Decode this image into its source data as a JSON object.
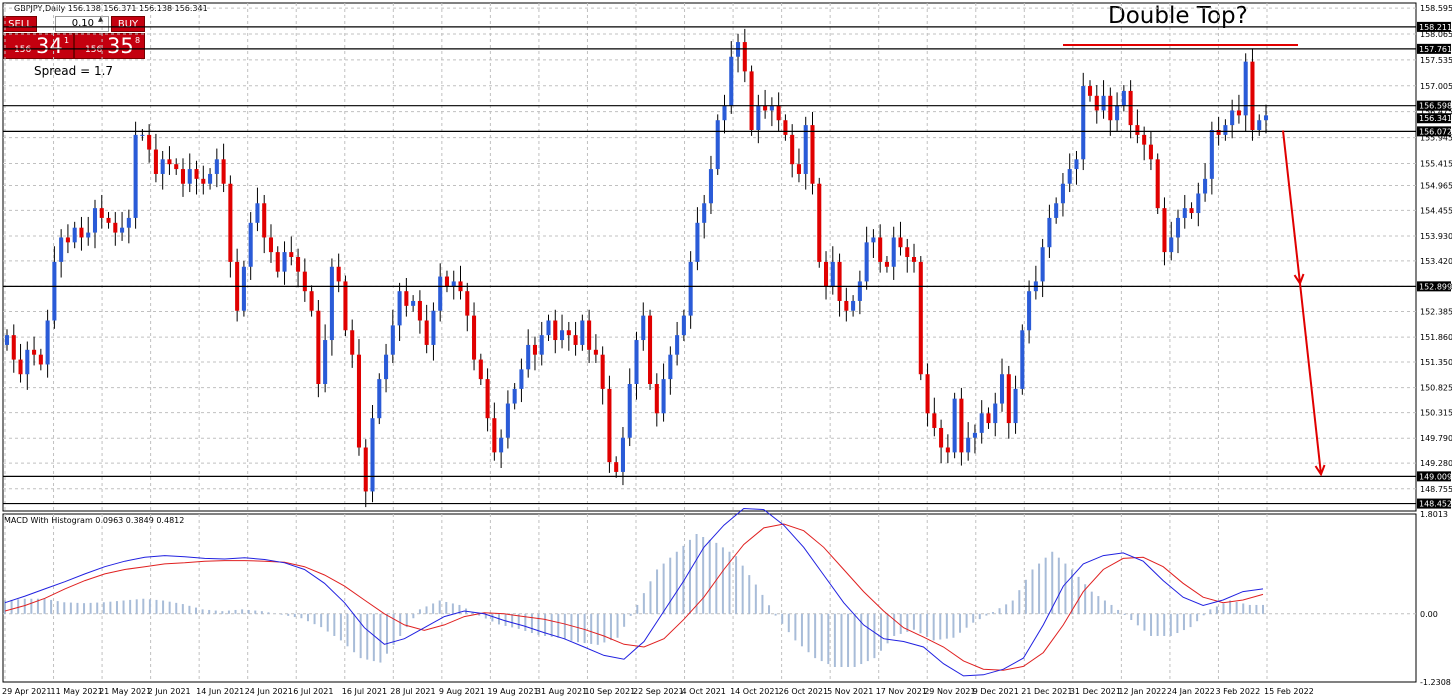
{
  "chart_title": "GBPJPY,Daily  156.138 156.371 156.138 156.341",
  "trade_panel": {
    "sell_label": "SELL",
    "buy_label": "BUY",
    "lot_value": "0.10",
    "sell_price_small": "156",
    "sell_price_big": "34",
    "sell_price_sup": "1",
    "buy_price_small": "156",
    "buy_price_big": "35",
    "buy_price_sup": "8",
    "spread_text": "Spread = 1.7"
  },
  "annotation": "Double Top?",
  "macd_label": "MACD With Histogram 0.0963 0.3849 0.4812",
  "colors": {
    "bull": "#2a5bd7",
    "bear": "#e00000",
    "macd_line": "#2020e0",
    "signal_line": "#e02020",
    "histogram": "#a8bcd8",
    "arrow": "#e00000",
    "price_box": "#000000"
  },
  "chart_data": [
    {
      "type": "candlestick",
      "symbol": "GBPJPY",
      "timeframe": "Daily",
      "ylim": [
        148.3,
        158.7
      ],
      "y_ticks": [
        158.595,
        158.065,
        157.535,
        157.005,
        156.475,
        155.945,
        155.415,
        154.965,
        154.455,
        153.93,
        153.42,
        152.899,
        152.385,
        151.86,
        151.35,
        150.825,
        150.315,
        149.79,
        149.28,
        148.755
      ],
      "x_ticks": [
        "29 Apr 2021",
        "11 May 2021",
        "21 May 2021",
        "2 Jun 2021",
        "14 Jun 2021",
        "24 Jun 2021",
        "6 Jul 2021",
        "16 Jul 2021",
        "28 Jul 2021",
        "9 Aug 2021",
        "19 Aug 2021",
        "31 Aug 2021",
        "10 Sep 2021",
        "22 Sep 2021",
        "4 Oct 2021",
        "14 Oct 2021",
        "26 Oct 2021",
        "5 Nov 2021",
        "17 Nov 2021",
        "29 Nov 2021",
        "9 Dec 2021",
        "21 Dec 2021",
        "31 Dec 2021",
        "12 Jan 2022",
        "24 Jan 2022",
        "3 Feb 2022",
        "15 Feb 2022"
      ],
      "horizontal_levels": [
        158.211,
        157.761,
        156.598,
        156.072,
        152.899,
        149.009,
        148.452
      ],
      "level_labels": [
        "158.211",
        "157.761",
        "156.598",
        "156.072",
        "152.899",
        "149.009",
        "148.452"
      ],
      "current_price": 156.341,
      "current_price_label": "156.341",
      "closes": [
        151.9,
        151.4,
        151.1,
        151.6,
        151.5,
        151.3,
        152.2,
        153.4,
        153.9,
        153.8,
        154.1,
        153.9,
        154.0,
        154.5,
        154.3,
        154.2,
        154.0,
        154.1,
        154.3,
        156.0,
        156.0,
        155.7,
        155.2,
        155.5,
        155.4,
        155.3,
        155.0,
        155.3,
        155.1,
        155.0,
        155.2,
        155.5,
        155.0,
        153.4,
        152.4,
        153.3,
        154.2,
        154.6,
        153.9,
        153.6,
        153.2,
        153.6,
        153.5,
        153.2,
        152.8,
        152.4,
        150.9,
        151.8,
        153.3,
        153.0,
        152.0,
        151.5,
        149.6,
        148.7,
        150.2,
        151.0,
        151.5,
        152.1,
        152.8,
        152.5,
        152.6,
        152.2,
        151.7,
        152.4,
        153.1,
        152.9,
        153.0,
        152.8,
        152.3,
        151.4,
        151.0,
        150.2,
        149.5,
        149.8,
        150.5,
        150.8,
        151.2,
        151.7,
        151.5,
        151.9,
        152.2,
        151.8,
        152.0,
        151.9,
        151.7,
        152.2,
        151.6,
        151.5,
        150.8,
        149.3,
        149.1,
        149.8,
        150.9,
        151.8,
        152.3,
        150.9,
        150.3,
        151.0,
        151.5,
        151.9,
        152.3,
        153.4,
        154.2,
        154.6,
        155.3,
        156.3,
        156.6,
        157.6,
        157.9,
        157.3,
        156.1,
        156.6,
        156.5,
        156.6,
        156.3,
        156.0,
        155.4,
        155.2,
        156.2,
        155.0,
        153.4,
        152.9,
        153.4,
        152.6,
        152.4,
        152.6,
        153.0,
        153.8,
        153.9,
        153.4,
        153.3,
        153.9,
        153.7,
        153.5,
        153.4,
        151.1,
        150.3,
        150.0,
        149.6,
        149.5,
        150.6,
        149.5,
        149.8,
        149.9,
        150.3,
        150.1,
        150.5,
        151.1,
        150.1,
        150.8,
        152.0,
        152.8,
        153.0,
        153.7,
        154.3,
        154.6,
        155.0,
        155.3,
        155.5,
        157.0,
        156.8,
        156.5,
        156.8,
        156.3,
        156.6,
        156.9,
        156.2,
        156.0,
        155.8,
        155.5,
        154.5,
        153.6,
        153.9,
        154.3,
        154.5,
        154.4,
        154.8,
        155.1,
        156.1,
        156.0,
        156.2,
        156.5,
        156.4,
        157.5,
        156.1,
        156.3,
        156.4
      ],
      "macd_ylim": [
        -1.2308,
        1.8013
      ],
      "macd_y_ticks": [
        1.8013,
        0.0,
        -1.2308
      ],
      "macd": [
        0.2,
        0.32,
        0.45,
        0.58,
        0.72,
        0.85,
        0.95,
        1.02,
        1.05,
        1.03,
        1.0,
        0.99,
        1.01,
        0.98,
        0.92,
        0.8,
        0.55,
        0.2,
        -0.25,
        -0.55,
        -0.45,
        -0.25,
        -0.05,
        0.05,
        0.0,
        -0.12,
        -0.22,
        -0.34,
        -0.45,
        -0.6,
        -0.75,
        -0.82,
        -0.5,
        0.05,
        0.6,
        1.2,
        1.6,
        1.9,
        1.88,
        1.6,
        1.2,
        0.7,
        0.2,
        -0.2,
        -0.45,
        -0.5,
        -0.6,
        -0.9,
        -1.12,
        -1.1,
        -1.0,
        -0.8,
        -0.2,
        0.5,
        0.9,
        1.05,
        1.1,
        0.95,
        0.6,
        0.3,
        0.15,
        0.25,
        0.4,
        0.45
      ],
      "signal": [
        0.05,
        0.15,
        0.28,
        0.45,
        0.6,
        0.72,
        0.8,
        0.85,
        0.9,
        0.92,
        0.95,
        0.96,
        0.96,
        0.95,
        0.93,
        0.85,
        0.7,
        0.5,
        0.25,
        0.0,
        -0.2,
        -0.3,
        -0.2,
        -0.05,
        0.02,
        0.0,
        -0.05,
        -0.1,
        -0.18,
        -0.28,
        -0.4,
        -0.55,
        -0.6,
        -0.45,
        -0.1,
        0.3,
        0.8,
        1.25,
        1.55,
        1.62,
        1.5,
        1.2,
        0.8,
        0.4,
        0.05,
        -0.25,
        -0.42,
        -0.6,
        -0.85,
        -1.0,
        -1.02,
        -0.95,
        -0.7,
        -0.2,
        0.4,
        0.8,
        1.0,
        1.02,
        0.85,
        0.55,
        0.3,
        0.2,
        0.25,
        0.35
      ]
    }
  ]
}
